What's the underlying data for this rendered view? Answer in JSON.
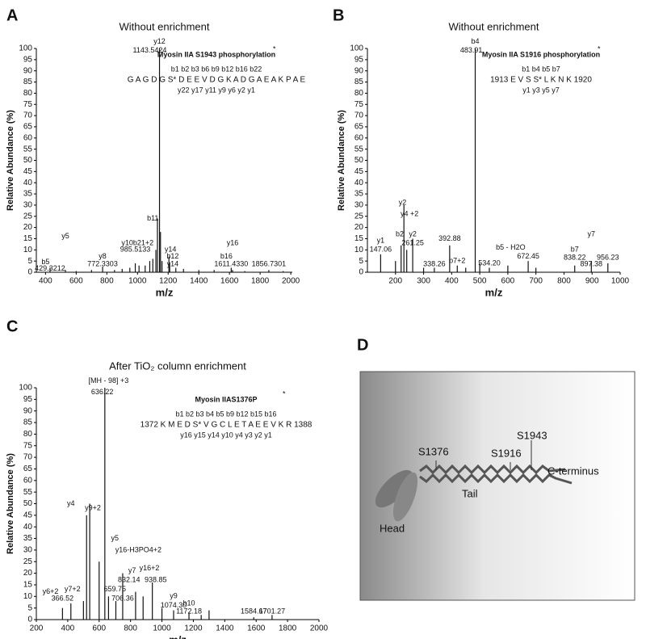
{
  "chart_data": [
    {
      "type": "stem",
      "panel": "A",
      "title": "Without enrichment",
      "x_label": "m/z",
      "y_label": "Relative Abundance (%)",
      "xlim": [
        340,
        2010
      ],
      "xticks": [
        400,
        600,
        800,
        1000,
        1200,
        1400,
        1600,
        1800,
        2000
      ],
      "ylim": [
        0,
        100
      ],
      "yticks": [
        0,
        5,
        10,
        15,
        20,
        25,
        30,
        35,
        40,
        45,
        50,
        55,
        60,
        65,
        70,
        75,
        80,
        85,
        90,
        95,
        100
      ],
      "color": "#111111",
      "x": [
        429.32,
        530,
        600,
        700,
        772.33,
        850,
        900,
        950,
        985.51,
        1010,
        1050,
        1080,
        1100,
        1120,
        1130,
        1143.54,
        1150,
        1160,
        1205,
        1210,
        1250,
        1300,
        1400,
        1500,
        1611.43,
        1620,
        1700,
        1856.73,
        1950
      ],
      "values": [
        2,
        1,
        0.5,
        1,
        2.5,
        1,
        1.5,
        2,
        4,
        3,
        3,
        5,
        6,
        10,
        24,
        100,
        18,
        5,
        7,
        4,
        2,
        1.5,
        1,
        1,
        2,
        1,
        0.5,
        1,
        0.5
      ],
      "annotations": [
        {
          "text": "b5",
          "x": 400,
          "y": 4.5
        },
        {
          "text": "429.3212",
          "x": 429.32,
          "y": 1.5
        },
        {
          "text": "y5",
          "x": 530,
          "y": 16
        },
        {
          "text": "y8",
          "x": 772.33,
          "y": 7
        },
        {
          "text": "772.3303",
          "x": 772.33,
          "y": 3.5
        },
        {
          "text": "y10b21+2",
          "x": 1000,
          "y": 13
        },
        {
          "text": "985.5133",
          "x": 985.51,
          "y": 10
        },
        {
          "text": "b11",
          "x": 1100,
          "y": 24
        },
        {
          "text": "y12",
          "x": 1143.54,
          "y": 103
        },
        {
          "text": "1143.5424",
          "x": 1080,
          "y": 99
        },
        {
          "text": "y14",
          "x": 1215,
          "y": 10
        },
        {
          "text": "b12",
          "x": 1230,
          "y": 7
        },
        {
          "text": "y14",
          "x": 1230,
          "y": 3.5
        },
        {
          "text": "b16",
          "x": 1580,
          "y": 7
        },
        {
          "text": "1611.4330",
          "x": 1611.43,
          "y": 3.5
        },
        {
          "text": "y16",
          "x": 1620,
          "y": 13
        },
        {
          "text": "1856.7301",
          "x": 1856.73,
          "y": 3.5
        }
      ],
      "inset": {
        "title": "Myosin IIA S1943 phosphorylation",
        "star": "*",
        "b_ions": "b1 b2 b3   b6   b9      b12      b16      b22",
        "sequence": "G A G D G S* D E E V D G K A D G A E A K P A E",
        "y_ions": "y22      y17         y11   y9    y6      y2  y1"
      }
    },
    {
      "type": "stem",
      "panel": "B",
      "title": "Without enrichment",
      "x_label": "m/z",
      "y_label": "Relative Abundance (%)",
      "xlim": [
        100,
        1000
      ],
      "xticks": [
        200,
        300,
        400,
        500,
        600,
        700,
        800,
        900,
        1000
      ],
      "ylim": [
        0,
        100
      ],
      "yticks": [
        0,
        5,
        10,
        15,
        20,
        25,
        30,
        35,
        40,
        45,
        50,
        55,
        60,
        65,
        70,
        75,
        80,
        85,
        90,
        95,
        100
      ],
      "color": "#111111",
      "x": [
        147.06,
        200,
        220,
        230,
        240,
        261.25,
        300,
        338.26,
        392.88,
        420,
        450,
        483.91,
        500,
        534.2,
        600,
        672.45,
        700,
        838.22,
        897.38,
        956.23
      ],
      "values": [
        8,
        5,
        12,
        30,
        10,
        15,
        2,
        2,
        12,
        3,
        2,
        100,
        4,
        2,
        3,
        5,
        2,
        3,
        5,
        4
      ],
      "annotations": [
        {
          "text": "y1",
          "x": 147.06,
          "y": 14
        },
        {
          "text": "147.06",
          "x": 147.06,
          "y": 10
        },
        {
          "text": "b2",
          "x": 215,
          "y": 17
        },
        {
          "text": "y2",
          "x": 225,
          "y": 31
        },
        {
          "text": "y4 +2",
          "x": 250,
          "y": 26
        },
        {
          "text": "y2",
          "x": 261.25,
          "y": 17
        },
        {
          "text": "261.25",
          "x": 261.25,
          "y": 13
        },
        {
          "text": "338.26",
          "x": 338.26,
          "y": 3.5
        },
        {
          "text": "392.88",
          "x": 392.88,
          "y": 15
        },
        {
          "text": "b7+2",
          "x": 420,
          "y": 5
        },
        {
          "text": "b4",
          "x": 483.91,
          "y": 103
        },
        {
          "text": "483.91",
          "x": 470,
          "y": 99
        },
        {
          "text": "534.20",
          "x": 534.2,
          "y": 4
        },
        {
          "text": "b5 - H2O",
          "x": 610,
          "y": 11
        },
        {
          "text": "672.45",
          "x": 672.45,
          "y": 7
        },
        {
          "text": "b7",
          "x": 838.22,
          "y": 10
        },
        {
          "text": "838.22",
          "x": 838.22,
          "y": 6.5
        },
        {
          "text": "y7",
          "x": 897.38,
          "y": 17
        },
        {
          "text": "897.38",
          "x": 897.38,
          "y": 3.5
        },
        {
          "text": "956.23",
          "x": 956.23,
          "y": 6.5
        }
      ],
      "inset": {
        "title": "Myosin IIA S1916 phosphorylation",
        "star": "*",
        "b_ions": "b1      b4 b5   b7",
        "sequence": "1913 E V S S* L K N K 1920",
        "y_ions": "y1   y3   y5   y7"
      }
    },
    {
      "type": "stem",
      "panel": "C",
      "title": "After TiO₂ column enrichment",
      "x_label": "m/z",
      "y_label": "Relative Abundance (%)",
      "xlim": [
        200,
        2000
      ],
      "xticks": [
        200,
        400,
        600,
        800,
        1000,
        1200,
        1400,
        1600,
        1800,
        2000
      ],
      "ylim": [
        0,
        100
      ],
      "yticks": [
        0,
        5,
        10,
        15,
        20,
        25,
        30,
        35,
        40,
        45,
        50,
        55,
        60,
        65,
        70,
        75,
        80,
        85,
        90,
        95,
        100
      ],
      "color": "#111111",
      "x": [
        366.52,
        420,
        500,
        520,
        540,
        600,
        636.22,
        659.75,
        706.36,
        750,
        832.14,
        880,
        938.85,
        1000,
        1074.3,
        1172.18,
        1250,
        1300,
        1584.67,
        1701.27
      ],
      "values": [
        5,
        7,
        8,
        45,
        50,
        25,
        100,
        10,
        8,
        20,
        12,
        10,
        16,
        5,
        4,
        3,
        2,
        4,
        1,
        2
      ],
      "annotations": [
        {
          "text": "[MH - 98] +3",
          "x": 660,
          "y": 103
        },
        {
          "text": "636.22",
          "x": 620,
          "y": 98
        },
        {
          "text": "y4",
          "x": 420,
          "y": 50
        },
        {
          "text": "y9+2",
          "x": 560,
          "y": 48
        },
        {
          "text": "y5",
          "x": 700,
          "y": 35
        },
        {
          "text": "y16-H3PO4+2",
          "x": 850,
          "y": 30
        },
        {
          "text": "y7",
          "x": 810,
          "y": 21
        },
        {
          "text": "832.14",
          "x": 790,
          "y": 17
        },
        {
          "text": "y16+2",
          "x": 920,
          "y": 22
        },
        {
          "text": "938.85",
          "x": 960,
          "y": 17
        },
        {
          "text": "659.75",
          "x": 700,
          "y": 13
        },
        {
          "text": "706.36",
          "x": 750,
          "y": 9
        },
        {
          "text": "y6+2",
          "x": 290,
          "y": 12
        },
        {
          "text": "y7+2",
          "x": 430,
          "y": 13
        },
        {
          "text": "366.52",
          "x": 366.52,
          "y": 9
        },
        {
          "text": "y9",
          "x": 1074.3,
          "y": 10
        },
        {
          "text": "1074.30",
          "x": 1074.3,
          "y": 6
        },
        {
          "text": "b10",
          "x": 1172.18,
          "y": 7
        },
        {
          "text": "1172.18",
          "x": 1172.18,
          "y": 3.5
        },
        {
          "text": "1584.67",
          "x": 1584.67,
          "y": 3.5
        },
        {
          "text": "1701.27",
          "x": 1701.27,
          "y": 3.5
        }
      ],
      "inset": {
        "title": "Myosin IIAS1376P",
        "star": "*",
        "b_ions": "b1  b2  b3 b4 b5      b9    b12      b15 b16",
        "sequence": "1372 K M E D S* V G C L E T A E E V K R 1388",
        "y_ions": "y16 y15 y14      y10          y4  y3  y2  y1"
      }
    }
  ],
  "diagram": {
    "panel": "D",
    "sites": [
      "S1376",
      "S1916",
      "S1943"
    ],
    "c_terminus": "C-terminus",
    "tail": "Tail",
    "head": "Head"
  }
}
